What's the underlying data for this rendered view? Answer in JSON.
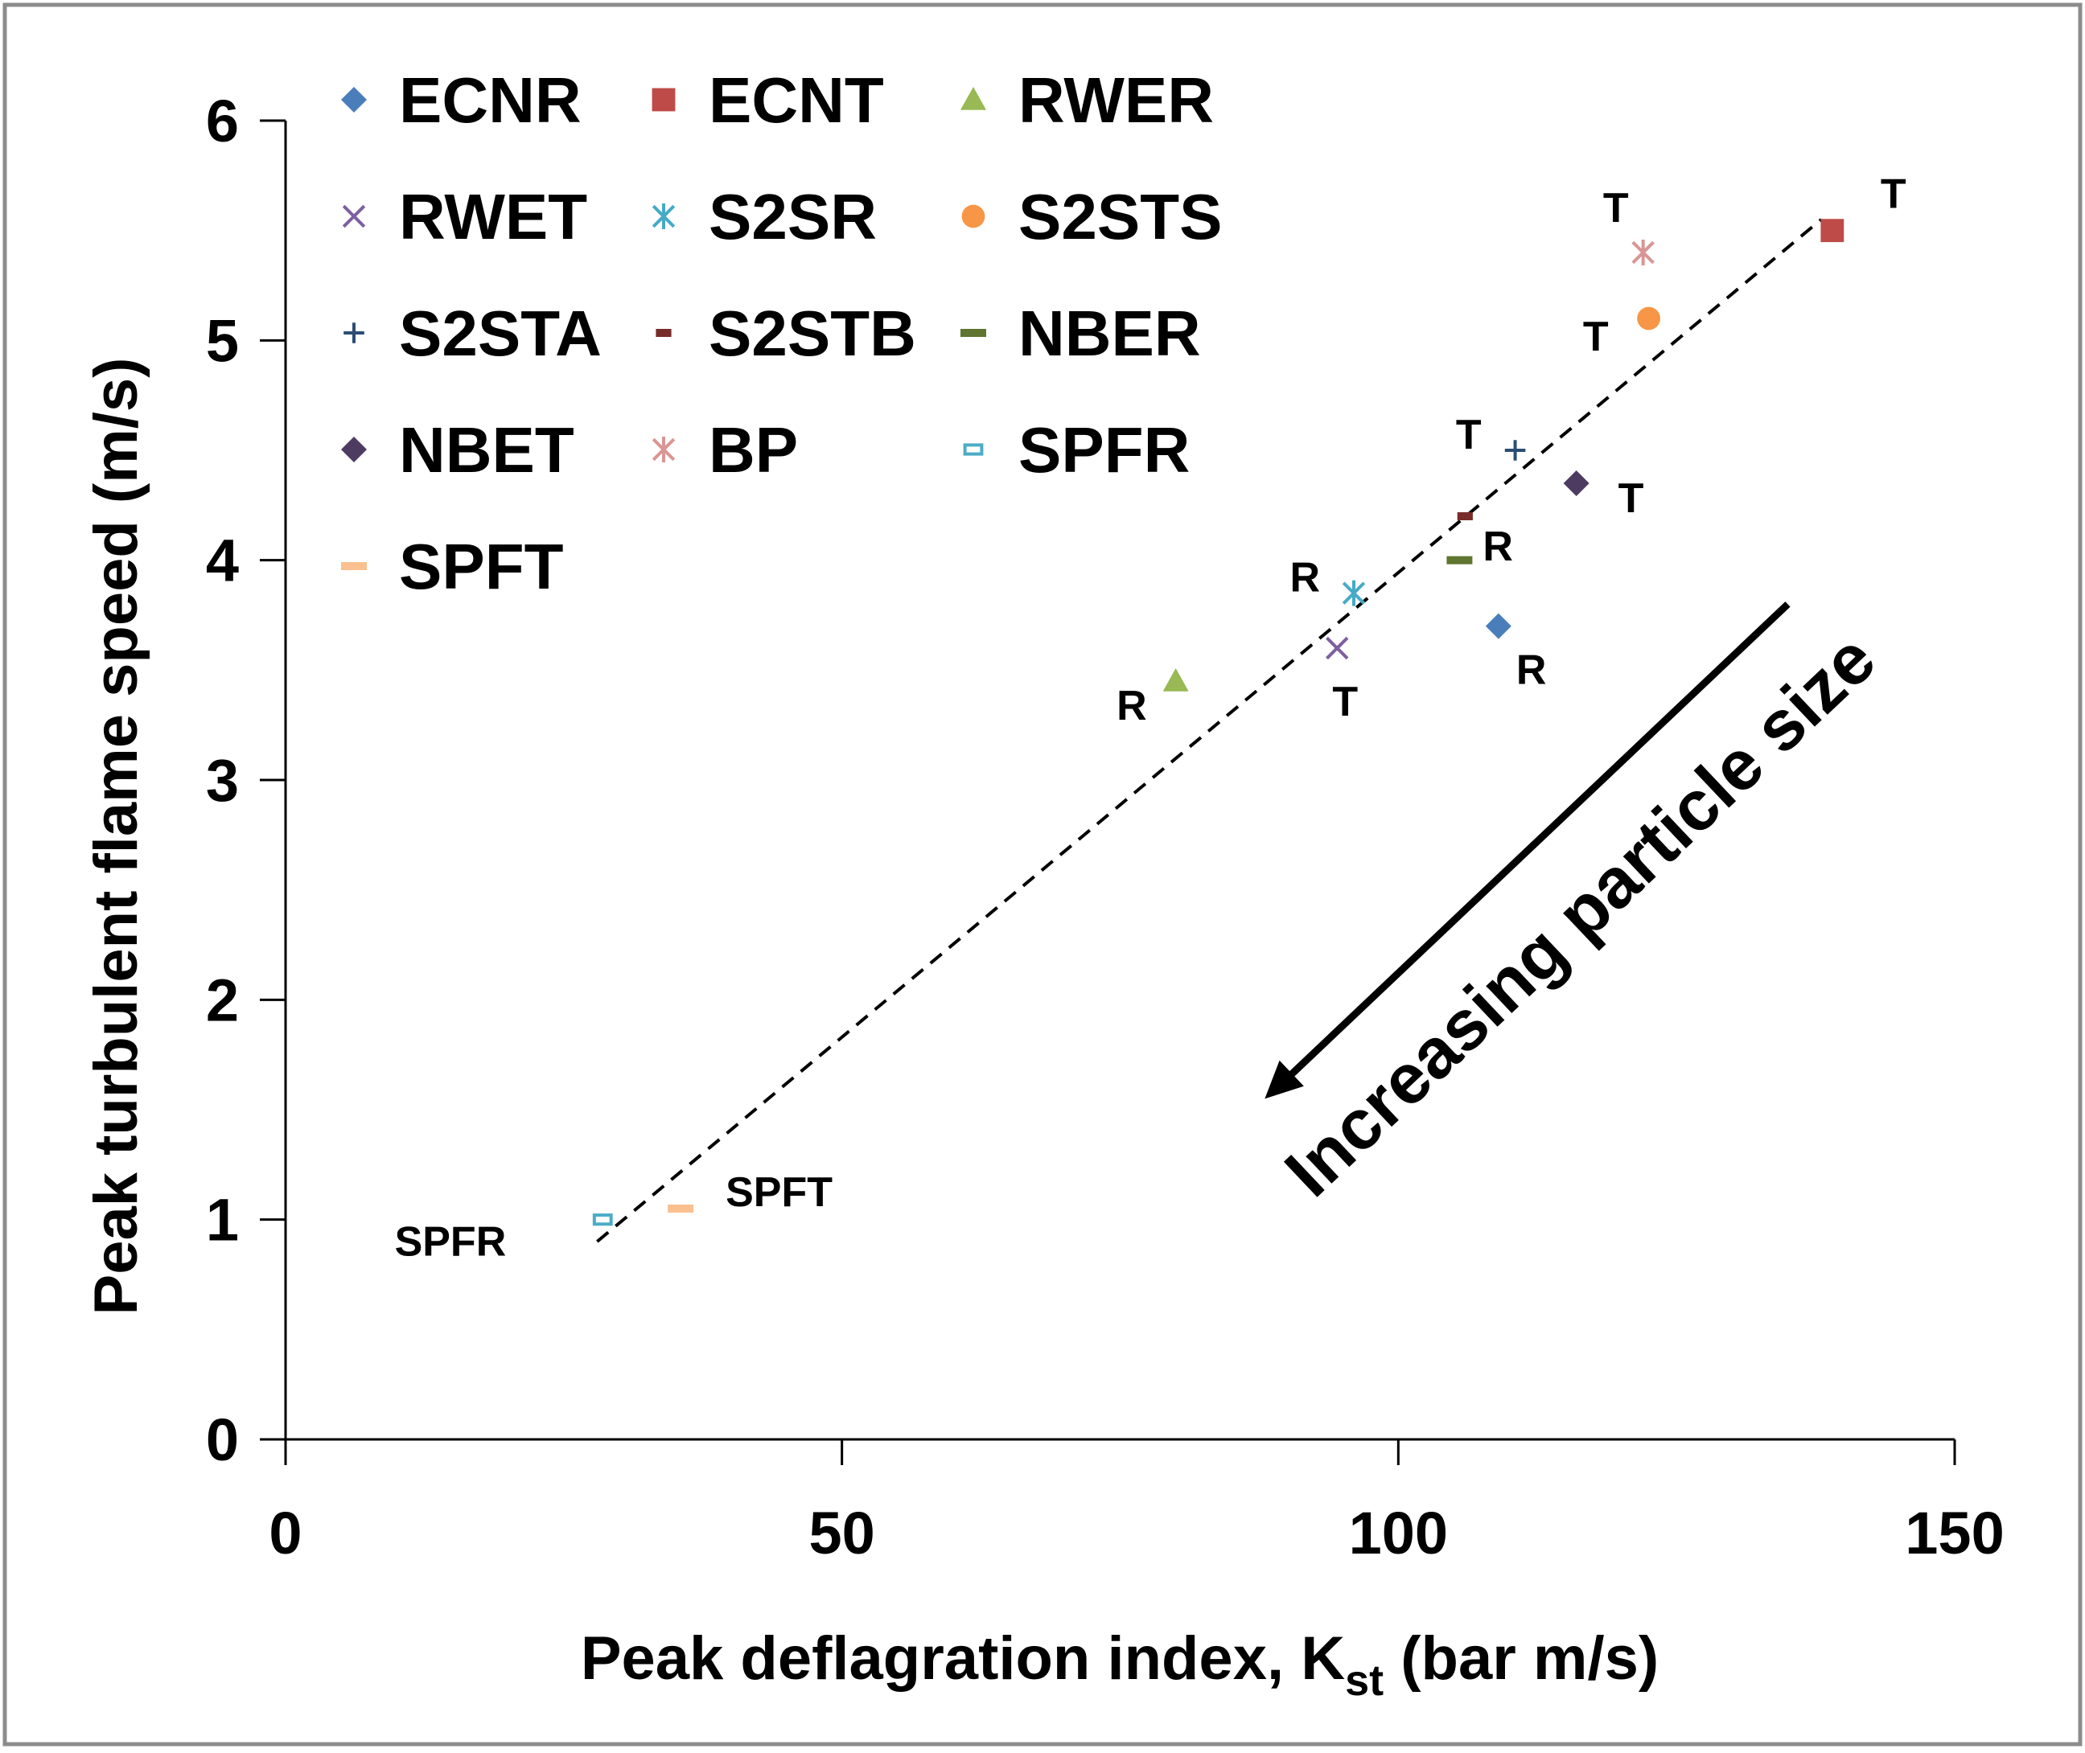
{
  "chart_data": {
    "type": "scatter",
    "title": "",
    "xlabel": "Peak deflagration index, K",
    "xlabel_subscript": "st",
    "xlabel_suffix": " (bar m/s)",
    "ylabel": "Peak turbulent flame speed (m/s)",
    "xlim": [
      0,
      150
    ],
    "ylim": [
      0,
      6
    ],
    "xticks": [
      0,
      50,
      100,
      150
    ],
    "yticks": [
      0,
      1,
      2,
      3,
      4,
      5,
      6
    ],
    "xtick_labels": [
      "0",
      "50",
      "100",
      "150"
    ],
    "ytick_labels": [
      "0",
      "1",
      "2",
      "3",
      "4",
      "5",
      "6"
    ],
    "grid": false,
    "legend_position": "top-left",
    "series": [
      {
        "name": "ECNR",
        "marker": "diamond",
        "color": "#4a7ebb",
        "x": 109,
        "y": 3.7,
        "label": "R"
      },
      {
        "name": "ECNT",
        "marker": "square",
        "color": "#be4b48",
        "x": 139,
        "y": 5.5,
        "label": "T"
      },
      {
        "name": "RWER",
        "marker": "triangle",
        "color": "#98b954",
        "x": 80,
        "y": 3.45,
        "label": "R"
      },
      {
        "name": "RWET",
        "marker": "x",
        "color": "#7d60a0",
        "x": 94.5,
        "y": 3.6,
        "label": "T"
      },
      {
        "name": "S2SR",
        "marker": "star",
        "color": "#46aac5",
        "x": 96,
        "y": 3.85,
        "label": "R"
      },
      {
        "name": "S2STS",
        "marker": "circle",
        "color": "#f79646",
        "x": 122.5,
        "y": 5.1,
        "label": "T"
      },
      {
        "name": "S2STA",
        "marker": "plus",
        "color": "#2c4d75",
        "x": 110.5,
        "y": 4.5,
        "label": "T"
      },
      {
        "name": "S2STB",
        "marker": "short-dash",
        "color": "#772c2a",
        "x": 106,
        "y": 4.2,
        "label": "R"
      },
      {
        "name": "NBER",
        "marker": "dash",
        "color": "#5f7530",
        "x": 105.5,
        "y": 4.0,
        "label": ""
      },
      {
        "name": "NBET",
        "marker": "diamond",
        "color": "#4d3b62",
        "x": 116,
        "y": 4.35,
        "label": "T"
      },
      {
        "name": "BP",
        "marker": "star",
        "color": "#d99694",
        "x": 122,
        "y": 5.4,
        "label": "T"
      },
      {
        "name": "SPFR",
        "marker": "open-rect",
        "color": "#4bacc6",
        "x": 28.5,
        "y": 1.0,
        "label": "SPFR"
      },
      {
        "name": "SPFT",
        "marker": "dash",
        "color": "#fac090",
        "x": 35.5,
        "y": 1.05,
        "label": "SPFT"
      }
    ],
    "trendline": {
      "style": "dashed",
      "color": "#000000",
      "x": [
        28,
        138
      ],
      "y": [
        0.9,
        5.55
      ]
    },
    "annotations": [
      {
        "text": "Increasing particle size",
        "type": "arrow",
        "from": [
          135,
          3.8
        ],
        "to": [
          88,
          1.55
        ]
      }
    ]
  }
}
